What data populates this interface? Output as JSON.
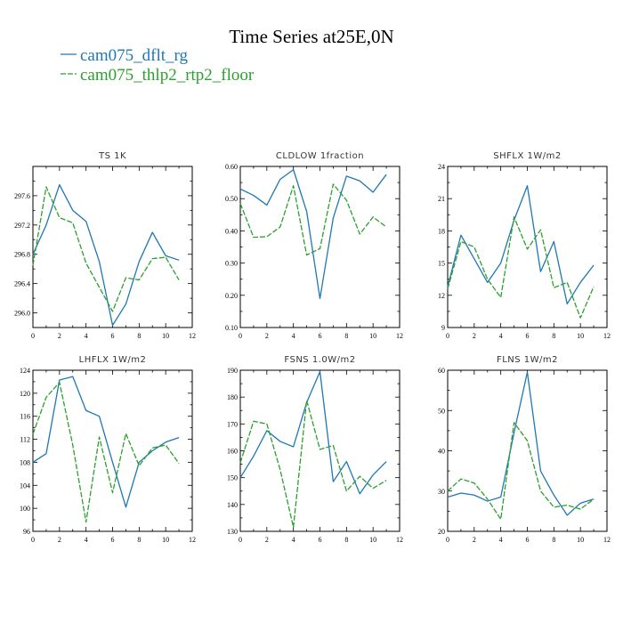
{
  "figure": {
    "title": "Time Series at25E,0N",
    "legend": [
      {
        "label": "cam075_dflt_rg",
        "color": "#1f77b4",
        "dash": ""
      },
      {
        "label": "cam075_thlp2_rtp2_floor",
        "color": "#2ca02c",
        "dash": "6,2"
      }
    ]
  },
  "chart_data": [
    {
      "type": "line",
      "title": "TS   1K",
      "xlim": [
        0,
        12
      ],
      "ylim": [
        295.8,
        298.0
      ],
      "xticks": [
        0,
        2,
        4,
        6,
        8,
        10,
        12
      ],
      "yticks": [
        296.0,
        296.4,
        296.8,
        297.2,
        297.6
      ],
      "ytick_labels": [
        "296.0",
        "296.4",
        "296.8",
        "297.2",
        "297.6"
      ],
      "x": [
        0,
        1,
        2,
        3,
        4,
        5,
        6,
        7,
        8,
        9,
        10,
        11
      ],
      "series": [
        {
          "name": "cam075_dflt_rg",
          "values": [
            296.8,
            297.2,
            297.75,
            297.4,
            297.25,
            296.7,
            295.83,
            296.12,
            296.7,
            297.1,
            296.78,
            296.72
          ]
        },
        {
          "name": "cam075_thlp2_rtp2_floor",
          "values": [
            296.65,
            297.72,
            297.3,
            297.23,
            296.68,
            296.35,
            296.02,
            296.48,
            296.45,
            296.74,
            296.76,
            296.45
          ]
        }
      ]
    },
    {
      "type": "line",
      "title": "CLDLOW   1fraction",
      "xlim": [
        0,
        12
      ],
      "ylim": [
        0.1,
        0.6
      ],
      "xticks": [
        0,
        2,
        4,
        6,
        8,
        10,
        12
      ],
      "yticks": [
        0.1,
        0.2,
        0.3,
        0.4,
        0.5,
        0.6
      ],
      "ytick_labels": [
        "0.10",
        "0.20",
        "0.30",
        "0.40",
        "0.50",
        "0.60"
      ],
      "x": [
        0,
        1,
        2,
        3,
        4,
        5,
        6,
        7,
        8,
        9,
        10,
        11
      ],
      "series": [
        {
          "name": "cam075_dflt_rg",
          "values": [
            0.53,
            0.51,
            0.48,
            0.56,
            0.59,
            0.46,
            0.19,
            0.44,
            0.57,
            0.555,
            0.52,
            0.575
          ]
        },
        {
          "name": "cam075_thlp2_rtp2_floor",
          "values": [
            0.485,
            0.38,
            0.382,
            0.412,
            0.54,
            0.325,
            0.345,
            0.545,
            0.495,
            0.39,
            0.443,
            0.412
          ]
        }
      ]
    },
    {
      "type": "line",
      "title": "SHFLX   1W/m2",
      "xlim": [
        0,
        12
      ],
      "ylim": [
        9,
        24
      ],
      "xticks": [
        0,
        2,
        4,
        6,
        8,
        10,
        12
      ],
      "yticks": [
        9,
        12,
        15,
        18,
        21,
        24
      ],
      "ytick_labels": [
        "9",
        "12",
        "15",
        "18",
        "21",
        "24"
      ],
      "x": [
        0,
        1,
        2,
        3,
        4,
        5,
        6,
        7,
        8,
        9,
        10,
        11
      ],
      "series": [
        {
          "name": "cam075_dflt_rg",
          "values": [
            12.8,
            17.6,
            15.4,
            13.2,
            15.0,
            19.0,
            22.2,
            14.2,
            17.0,
            11.2,
            13.2,
            14.8
          ]
        },
        {
          "name": "cam075_thlp2_rtp2_floor",
          "values": [
            12.6,
            17.0,
            16.5,
            13.5,
            11.8,
            19.3,
            16.3,
            18.1,
            12.7,
            13.2,
            9.9,
            12.8
          ]
        }
      ]
    },
    {
      "type": "line",
      "title": "LHFLX   1W/m2",
      "xlim": [
        0,
        12
      ],
      "ylim": [
        96,
        124
      ],
      "xticks": [
        0,
        2,
        4,
        6,
        8,
        10,
        12
      ],
      "yticks": [
        96,
        100,
        104,
        108,
        112,
        116,
        120,
        124
      ],
      "ytick_labels": [
        "96",
        "100",
        "104",
        "108",
        "112",
        "116",
        "120",
        "124"
      ],
      "x": [
        0,
        1,
        2,
        3,
        4,
        5,
        6,
        7,
        8,
        9,
        10,
        11
      ],
      "series": [
        {
          "name": "cam075_dflt_rg",
          "values": [
            108.0,
            109.5,
            122.3,
            122.9,
            117.0,
            116.0,
            108.0,
            100.2,
            108.0,
            110.0,
            111.5,
            112.3
          ]
        },
        {
          "name": "cam075_thlp2_rtp2_floor",
          "values": [
            112.9,
            119.3,
            121.9,
            111.0,
            97.6,
            112.4,
            102.7,
            113.0,
            107.4,
            110.5,
            111.0,
            107.8
          ]
        }
      ]
    },
    {
      "type": "line",
      "title": "FSNS   1.0W/m2",
      "xlim": [
        0,
        12
      ],
      "ylim": [
        130,
        190
      ],
      "xticks": [
        0,
        2,
        4,
        6,
        8,
        10,
        12
      ],
      "yticks": [
        130,
        140,
        150,
        160,
        170,
        180,
        190
      ],
      "ytick_labels": [
        "130",
        "140",
        "150",
        "160",
        "170",
        "180",
        "190"
      ],
      "x": [
        0,
        1,
        2,
        3,
        4,
        5,
        6,
        7,
        8,
        9,
        10,
        11
      ],
      "series": [
        {
          "name": "cam075_dflt_rg",
          "values": [
            150.0,
            158.0,
            167.5,
            163.5,
            161.5,
            178.0,
            189.5,
            148.5,
            156.0,
            144.0,
            151.0,
            156.0
          ]
        },
        {
          "name": "cam075_thlp2_rtp2_floor",
          "values": [
            155.5,
            171.0,
            170.0,
            153.0,
            131.5,
            178.8,
            160.5,
            162.0,
            145.0,
            150.5,
            146.0,
            149.0
          ]
        }
      ]
    },
    {
      "type": "line",
      "title": "FLNS   1W/m2",
      "xlim": [
        0,
        12
      ],
      "ylim": [
        20,
        60
      ],
      "xticks": [
        0,
        2,
        4,
        6,
        8,
        10,
        12
      ],
      "yticks": [
        20,
        30,
        40,
        50,
        60
      ],
      "ytick_labels": [
        "20",
        "30",
        "40",
        "50",
        "60"
      ],
      "x": [
        0,
        1,
        2,
        3,
        4,
        5,
        6,
        7,
        8,
        9,
        10,
        11
      ],
      "series": [
        {
          "name": "cam075_dflt_rg",
          "values": [
            28.5,
            29.5,
            29.0,
            27.5,
            28.5,
            44.5,
            59.5,
            35.0,
            29.0,
            24.0,
            27.0,
            28.0
          ]
        },
        {
          "name": "cam075_thlp2_rtp2_floor",
          "values": [
            30.0,
            33.0,
            32.0,
            28.0,
            23.0,
            47.0,
            42.5,
            30.0,
            26.0,
            26.5,
            25.5,
            28.0
          ]
        }
      ]
    }
  ]
}
